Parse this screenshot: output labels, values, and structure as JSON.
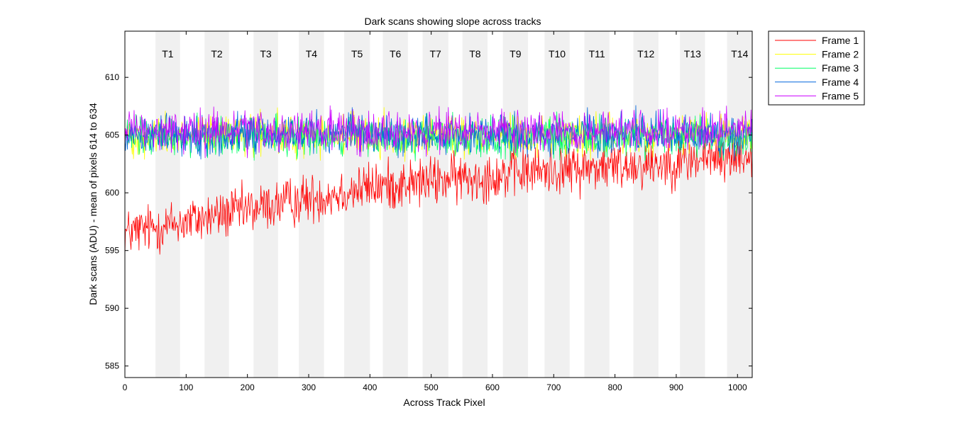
{
  "chart_data": {
    "type": "line",
    "title": "Dark scans showing slope across tracks",
    "xlabel": "Across Track Pixel",
    "ylabel": "Dark scans (ADU) - mean of pixels 614 to 634",
    "xlim": [
      0,
      1024
    ],
    "ylim": [
      584,
      614
    ],
    "xticks": [
      0,
      100,
      200,
      300,
      400,
      500,
      600,
      700,
      800,
      900,
      1000
    ],
    "yticks": [
      585,
      590,
      595,
      600,
      605,
      610
    ],
    "grid": false,
    "legend_position": "outside-top-right",
    "tracks": [
      {
        "label": "T1",
        "start": 50,
        "end": 90
      },
      {
        "label": "T2",
        "start": 130,
        "end": 170
      },
      {
        "label": "T3",
        "start": 210,
        "end": 250
      },
      {
        "label": "T4",
        "start": 284,
        "end": 325
      },
      {
        "label": "T5",
        "start": 358,
        "end": 400
      },
      {
        "label": "T6",
        "start": 421,
        "end": 462
      },
      {
        "label": "T7",
        "start": 486,
        "end": 528
      },
      {
        "label": "T8",
        "start": 551,
        "end": 592
      },
      {
        "label": "T9",
        "start": 617,
        "end": 658
      },
      {
        "label": "T10",
        "start": 685,
        "end": 726
      },
      {
        "label": "T11",
        "start": 750,
        "end": 791
      },
      {
        "label": "T12",
        "start": 830,
        "end": 871
      },
      {
        "label": "T13",
        "start": 906,
        "end": 947
      },
      {
        "label": "T14",
        "start": 983,
        "end": 1024
      }
    ],
    "series": [
      {
        "name": "Frame 1",
        "color": "#ff0000",
        "x": [
          0,
          100,
          200,
          300,
          400,
          500,
          600,
          700,
          800,
          900,
          1000,
          1024
        ],
        "values": [
          596.5,
          597.5,
          598.5,
          599.5,
          600.5,
          601.0,
          601.5,
          602.0,
          602.3,
          602.7,
          603.2,
          603.3
        ],
        "noise_range": 3.2
      },
      {
        "name": "Frame 2",
        "color": "#ffff00",
        "x": [
          0,
          1024
        ],
        "values": [
          605.0,
          605.0
        ],
        "noise_range": 2.6
      },
      {
        "name": "Frame 3",
        "color": "#00ff66",
        "x": [
          0,
          1024
        ],
        "values": [
          604.8,
          604.8
        ],
        "noise_range": 2.6
      },
      {
        "name": "Frame 4",
        "color": "#0066dd",
        "x": [
          0,
          1024
        ],
        "values": [
          605.1,
          605.1
        ],
        "noise_range": 2.6
      },
      {
        "name": "Frame 5",
        "color": "#cc00ff",
        "x": [
          0,
          1024
        ],
        "values": [
          605.3,
          605.3
        ],
        "noise_range": 2.6
      }
    ]
  }
}
